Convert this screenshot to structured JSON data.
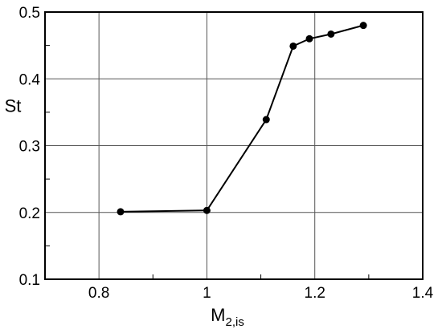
{
  "chart_data": {
    "type": "line",
    "title": "",
    "xlabel": "M",
    "xlabel_subscript": "2,is",
    "ylabel": "St",
    "xlim": [
      0.7,
      1.4
    ],
    "ylim": [
      0.1,
      0.5
    ],
    "grid": true,
    "x_ticks": [
      {
        "value": 0.8,
        "label": "0.8"
      },
      {
        "value": 1.0,
        "label": "1"
      },
      {
        "value": 1.2,
        "label": "1.2"
      },
      {
        "value": 1.4,
        "label": "1.4"
      }
    ],
    "y_ticks": [
      {
        "value": 0.1,
        "label": "0.1"
      },
      {
        "value": 0.2,
        "label": "0.2"
      },
      {
        "value": 0.3,
        "label": "0.3"
      },
      {
        "value": 0.4,
        "label": "0.4"
      },
      {
        "value": 0.5,
        "label": "0.5"
      }
    ],
    "series": [
      {
        "color": "#000000",
        "marker": "circle",
        "points": [
          {
            "x": 0.84,
            "y": 0.201
          },
          {
            "x": 1.0,
            "y": 0.203
          },
          {
            "x": 1.11,
            "y": 0.339
          },
          {
            "x": 1.16,
            "y": 0.449
          },
          {
            "x": 1.19,
            "y": 0.46
          },
          {
            "x": 1.23,
            "y": 0.467
          },
          {
            "x": 1.29,
            "y": 0.48
          }
        ]
      }
    ]
  }
}
